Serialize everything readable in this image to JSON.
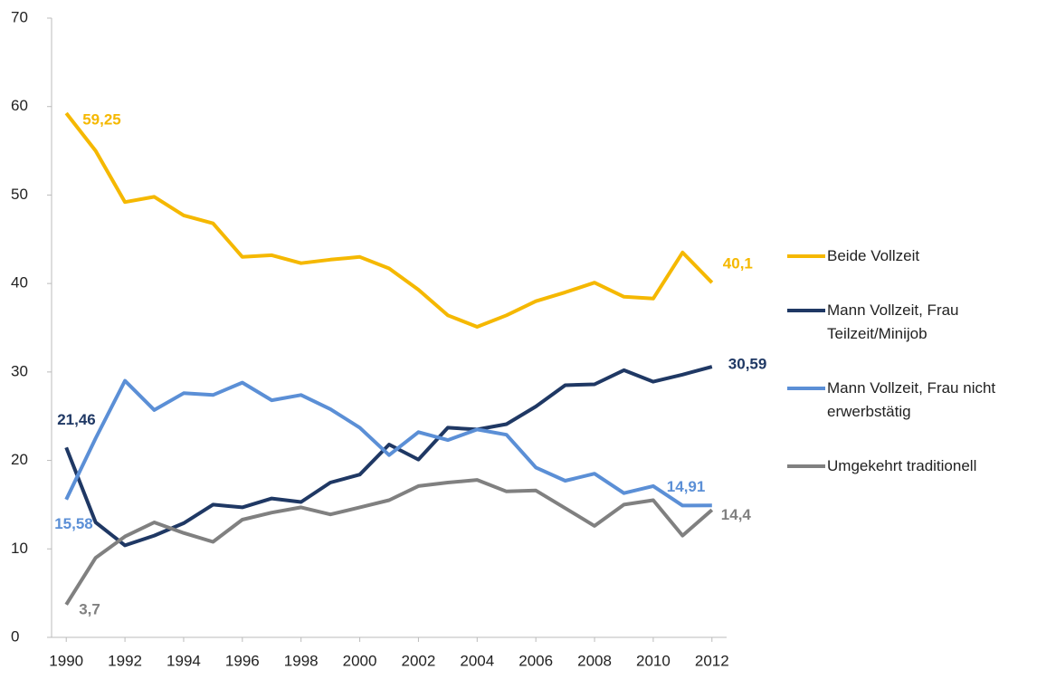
{
  "chart_data": {
    "type": "line",
    "x": [
      1990,
      1991,
      1992,
      1993,
      1994,
      1995,
      1996,
      1997,
      1998,
      1999,
      2000,
      2001,
      2002,
      2003,
      2004,
      2005,
      2006,
      2007,
      2008,
      2009,
      2010,
      2011,
      2012
    ],
    "xlim": [
      1989.5,
      2012.5
    ],
    "xticks": [
      1990,
      1992,
      1994,
      1996,
      1998,
      2000,
      2002,
      2004,
      2006,
      2008,
      2010,
      2012
    ],
    "ylim": [
      0,
      70
    ],
    "yticks": [
      0,
      10,
      20,
      30,
      40,
      50,
      60,
      70
    ],
    "grid": false,
    "legend": "right",
    "series": [
      {
        "name": "Beide Vollzeit",
        "color": "#f5b800",
        "values": [
          59.25,
          55,
          49.2,
          49.8,
          47.7,
          46.8,
          43,
          43.2,
          42.3,
          42.7,
          43,
          41.7,
          39.3,
          36.4,
          35.1,
          36.4,
          38,
          39,
          40.1,
          38.5,
          38.3,
          43.5,
          40.1
        ],
        "value_labels": [
          "59,25",
          null,
          null,
          null,
          null,
          null,
          null,
          null,
          null,
          null,
          null,
          null,
          null,
          null,
          null,
          null,
          null,
          null,
          null,
          null,
          null,
          null,
          "40,1"
        ]
      },
      {
        "name": "Mann Vollzeit, Frau Teilzeit/Minijob",
        "color": "#1f3864",
        "values": [
          21.46,
          13,
          10.4,
          11.5,
          12.9,
          15,
          14.7,
          15.7,
          15.3,
          17.5,
          18.4,
          21.8,
          20.1,
          23.7,
          23.5,
          24.1,
          26.1,
          28.5,
          28.6,
          30.2,
          28.9,
          29.7,
          30.59
        ],
        "value_labels": [
          "21,46",
          null,
          null,
          null,
          null,
          null,
          null,
          null,
          null,
          null,
          null,
          null,
          null,
          null,
          null,
          null,
          null,
          null,
          null,
          null,
          null,
          null,
          "30,59"
        ]
      },
      {
        "name": "Mann Vollzeit, Frau nicht erwerbstätig",
        "color": "#5b8fd6",
        "values": [
          15.58,
          22.5,
          29,
          25.7,
          27.6,
          27.4,
          28.8,
          26.8,
          27.4,
          25.8,
          23.7,
          20.6,
          23.2,
          22.3,
          23.5,
          22.9,
          19.2,
          17.7,
          18.5,
          16.3,
          17.1,
          14.9,
          14.91
        ],
        "value_labels": [
          "15,58",
          null,
          null,
          null,
          null,
          null,
          null,
          null,
          null,
          null,
          null,
          null,
          null,
          null,
          null,
          null,
          null,
          null,
          null,
          null,
          null,
          null,
          "14,91"
        ]
      },
      {
        "name": "Umgekehrt traditionell",
        "color": "#808080",
        "values": [
          3.7,
          9,
          11.4,
          13,
          11.8,
          10.8,
          13.3,
          14.1,
          14.7,
          13.9,
          14.7,
          15.5,
          17.1,
          17.5,
          17.8,
          16.5,
          16.6,
          14.6,
          12.6,
          15,
          15.5,
          11.5,
          14.4
        ],
        "value_labels": [
          "3,7",
          null,
          null,
          null,
          null,
          null,
          null,
          null,
          null,
          null,
          null,
          null,
          null,
          null,
          null,
          null,
          null,
          null,
          null,
          null,
          null,
          null,
          "14,4"
        ]
      }
    ]
  }
}
